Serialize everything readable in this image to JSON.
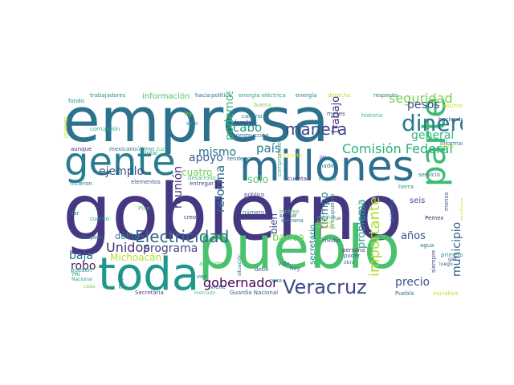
{
  "cloud": {
    "words": [
      {
        "text": "gobierno",
        "color": "#453781"
      },
      {
        "text": "empresa",
        "color": "#2c728e"
      },
      {
        "text": "pueblo",
        "color": "#4ac16d"
      },
      {
        "text": "millones",
        "color": "#2d708e"
      },
      {
        "text": "toda",
        "color": "#1f978b"
      },
      {
        "text": "gente",
        "color": "#287d8e"
      },
      {
        "text": "parte",
        "color": "#3bbb75"
      },
      {
        "text": "dinero",
        "color": "#2a788e"
      },
      {
        "text": "Veracruz",
        "color": "#3f4788"
      },
      {
        "text": "Electricidad",
        "color": "#31688e"
      },
      {
        "text": "Comisión Federal",
        "color": "#2ab07f"
      },
      {
        "text": "importante",
        "color": "#addc30"
      },
      {
        "text": "manera",
        "color": "#3e4989"
      },
      {
        "text": "seguridad",
        "color": "#7ad151"
      },
      {
        "text": "gobernador",
        "color": "#440154"
      },
      {
        "text": "reforma",
        "color": "#2f6c8e"
      },
      {
        "text": "Unidos",
        "color": "#472c7a"
      },
      {
        "text": "programa",
        "color": "#414487"
      },
      {
        "text": "municipio",
        "color": "#33638d"
      },
      {
        "text": "general",
        "color": "#35b779"
      },
      {
        "text": "precio",
        "color": "#3a548c"
      },
      {
        "text": "cabo",
        "color": "#1e9c89"
      },
      {
        "text": "país",
        "color": "#2a778e"
      },
      {
        "text": "pesos",
        "color": "#404588"
      },
      {
        "text": "ejemplo",
        "color": "#3b528b"
      },
      {
        "text": "apoyo",
        "color": "#355f8d"
      },
      {
        "text": "mismo",
        "color": "#2d718e"
      },
      {
        "text": "baja",
        "color": "#2c728e"
      },
      {
        "text": "Michoacán",
        "color": "#b5de2b"
      },
      {
        "text": "robo",
        "color": "#481668"
      },
      {
        "text": "reunión",
        "color": "#46307e"
      },
      {
        "text": "podemos",
        "color": "#3aba76"
      },
      {
        "text": "trabajo",
        "color": "#482979"
      },
      {
        "text": "solo",
        "color": "#5ec962"
      },
      {
        "text": "banco",
        "color": "#75d054"
      },
      {
        "text": "tiempo",
        "color": "#2c738e"
      },
      {
        "text": "problema",
        "color": "#20a386"
      },
      {
        "text": "años",
        "color": "#3b528b"
      },
      {
        "text": "cuatro",
        "color": "#70cf57"
      },
      {
        "text": "bien",
        "color": "#3e4989"
      },
      {
        "text": "delito",
        "color": "#24868e"
      },
      {
        "text": "secretario",
        "color": "#26818e"
      },
      {
        "text": "seis",
        "color": "#3b528b"
      },
      {
        "text": "información",
        "color": "#4ac16d"
      },
      {
        "text": "trabajadores",
        "color": "#21918c"
      },
      {
        "text": "hacia",
        "color": "#31688e"
      },
      {
        "text": "política",
        "color": "#2a768e"
      },
      {
        "text": "energía eléctrica",
        "color": "#1fa188"
      },
      {
        "text": "energía",
        "color": "#297b8e"
      },
      {
        "text": "derecho",
        "color": "#b8de29"
      },
      {
        "text": "respecto",
        "color": "#2a788e"
      },
      {
        "text": "fondo",
        "color": "#20928c"
      },
      {
        "text": "jóvenes",
        "color": "#bddf26"
      },
      {
        "text": "corrupción",
        "color": "#27ad81"
      },
      {
        "text": "ley",
        "color": "#86d549"
      },
      {
        "text": "sino",
        "color": "#1f958b"
      },
      {
        "text": "buena",
        "color": "#73d056"
      },
      {
        "text": "camino",
        "color": "#2c718e"
      },
      {
        "text": "familia",
        "color": "#404688"
      },
      {
        "text": "construcción",
        "color": "#32648e"
      },
      {
        "text": "meses",
        "color": "#3c4f8a"
      },
      {
        "text": "historia",
        "color": "#35b779"
      },
      {
        "text": "haciendo",
        "color": "#3a548c"
      },
      {
        "text": "asunto",
        "color": "#d0e11c"
      },
      {
        "text": "informar",
        "color": "#277f8e"
      },
      {
        "text": "casos",
        "color": "#bade28"
      },
      {
        "text": "último",
        "color": "#1f968b"
      },
      {
        "text": "luz",
        "color": "#50c46a"
      },
      {
        "text": "mexicano",
        "color": "#2c718e"
      },
      {
        "text": "aunque",
        "color": "#46327e"
      },
      {
        "text": "hicieron",
        "color": "#2a778e"
      },
      {
        "text": "total",
        "color": "#21918c"
      },
      {
        "text": "elementos",
        "color": "#38598c"
      },
      {
        "text": "tendencia",
        "color": "#32648e"
      },
      {
        "text": "desarrollo",
        "color": "#3dbc74"
      },
      {
        "text": "entregar",
        "color": "#404588"
      },
      {
        "text": "público",
        "color": "#443983"
      },
      {
        "text": "concreto",
        "color": "#fde725"
      },
      {
        "text": "compromiso",
        "color": "#22a884"
      },
      {
        "text": "litio",
        "color": "#3b528b"
      },
      {
        "text": "nadie",
        "color": "#287c8e"
      },
      {
        "text": "cuenta",
        "color": "#472a7a"
      },
      {
        "text": "nuevo",
        "color": "#1f958b"
      },
      {
        "text": "servicio",
        "color": "#2a778e"
      },
      {
        "text": "tierra",
        "color": "#20a486"
      },
      {
        "text": "dar",
        "color": "#26828e"
      },
      {
        "text": "cuánto",
        "color": "#1f9e89"
      },
      {
        "text": "Plan",
        "color": "#4ac16d"
      },
      {
        "text": "creo",
        "color": "#472d7b"
      },
      {
        "text": "número",
        "color": "#34618d"
      },
      {
        "text": "seguir",
        "color": "#46317e"
      },
      {
        "text": "semana",
        "color": "#2a788e"
      },
      {
        "text": "presupuesto",
        "color": "#287d8e"
      },
      {
        "text": "Jalisco",
        "color": "#21918c"
      },
      {
        "text": "primera",
        "color": "#2c728e"
      },
      {
        "text": "Pemex",
        "color": "#481f70"
      },
      {
        "text": "menos",
        "color": "#3b528b"
      },
      {
        "text": "mañana",
        "color": "#c2df23"
      },
      {
        "text": "respeto",
        "color": "#2d708e"
      },
      {
        "text": "pueden",
        "color": "#1f9e89"
      },
      {
        "text": "PRI",
        "color": "#1f968b"
      },
      {
        "text": "Nacional",
        "color": "#22a884"
      },
      {
        "text": "cada",
        "color": "#7fd34e"
      },
      {
        "text": "mejor",
        "color": "#2a788e"
      },
      {
        "text": "Secretaría",
        "color": "#3e4a89"
      },
      {
        "text": "mercado",
        "color": "#4ac16d"
      },
      {
        "text": "Guardia Nacional",
        "color": "#365c8d"
      },
      {
        "text": "Puebla",
        "color": "#2f6c8e"
      },
      {
        "text": "iniciativa",
        "color": "#b5de2b"
      },
      {
        "text": "situación",
        "color": "#33638d"
      },
      {
        "text": "acuerdo",
        "color": "#4ac16d"
      },
      {
        "text": "vez",
        "color": "#2a788e"
      },
      {
        "text": "viene",
        "color": "#3f4788"
      },
      {
        "text": "debe",
        "color": "#3a548c"
      },
      {
        "text": "vida",
        "color": "#2e6f8e"
      },
      {
        "text": "cosa",
        "color": "#238a8d"
      },
      {
        "text": "hoy",
        "color": "#34618d"
      },
      {
        "text": "medio",
        "color": "#3b528b"
      },
      {
        "text": "persona",
        "color": "#472f7d"
      },
      {
        "text": "poder",
        "color": "#375b8d"
      },
      {
        "text": "agua",
        "color": "#2a778e"
      },
      {
        "text": "siempre",
        "color": "#3a548c"
      },
      {
        "text": "primero",
        "color": "#21918c"
      },
      {
        "text": "gas",
        "color": "#3e4989"
      },
      {
        "text": "luego",
        "color": "#31688e"
      },
      {
        "text": "incluso",
        "color": "#3dbc74"
      },
      {
        "text": "mucho",
        "color": "#4ac16d"
      },
      {
        "text": "fue",
        "color": "#2a788e"
      },
      {
        "text": "hecho",
        "color": "#b8de29"
      },
      {
        "text": "mundo",
        "color": "#c8e020"
      },
      {
        "text": "obra",
        "color": "#2c728e"
      }
    ]
  }
}
